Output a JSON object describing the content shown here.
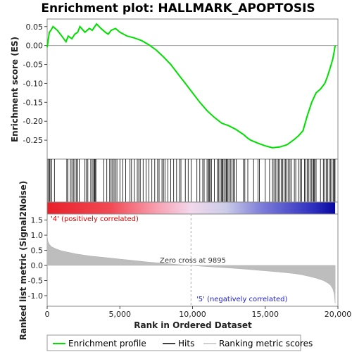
{
  "chart_data": {
    "type": "line",
    "title": "Enrichment plot: HALLMARK_APOPTOSIS",
    "es_panel": {
      "ylabel": "Enrichment score (ES)",
      "ylim": [
        -0.3,
        0.07
      ],
      "yticks": [
        "0.05",
        "0.00",
        "-0.05",
        "-0.10",
        "-0.15",
        "-0.20",
        "-0.25"
      ],
      "ytick_values": [
        0.05,
        0.0,
        -0.05,
        -0.1,
        -0.15,
        -0.2,
        -0.25
      ],
      "series_name": "Enrichment profile",
      "color": "#00e000",
      "points": [
        [
          0,
          -0.005
        ],
        [
          150,
          0.035
        ],
        [
          250,
          0.04
        ],
        [
          400,
          0.05
        ],
        [
          700,
          0.04
        ],
        [
          1000,
          0.025
        ],
        [
          1300,
          0.01
        ],
        [
          1450,
          0.025
        ],
        [
          1700,
          0.018
        ],
        [
          1900,
          0.03
        ],
        [
          2100,
          0.035
        ],
        [
          2250,
          0.05
        ],
        [
          2600,
          0.035
        ],
        [
          2900,
          0.045
        ],
        [
          3100,
          0.04
        ],
        [
          3400,
          0.057
        ],
        [
          3700,
          0.045
        ],
        [
          4000,
          0.035
        ],
        [
          4200,
          0.03
        ],
        [
          4400,
          0.04
        ],
        [
          4700,
          0.045
        ],
        [
          5000,
          0.035
        ],
        [
          5500,
          0.025
        ],
        [
          6000,
          0.02
        ],
        [
          6500,
          0.013
        ],
        [
          7000,
          0.002
        ],
        [
          7500,
          -0.012
        ],
        [
          8000,
          -0.03
        ],
        [
          8500,
          -0.05
        ],
        [
          9000,
          -0.075
        ],
        [
          9500,
          -0.1
        ],
        [
          10000,
          -0.125
        ],
        [
          10500,
          -0.15
        ],
        [
          11000,
          -0.172
        ],
        [
          11500,
          -0.19
        ],
        [
          12000,
          -0.205
        ],
        [
          12500,
          -0.212
        ],
        [
          13000,
          -0.222
        ],
        [
          13500,
          -0.235
        ],
        [
          13800,
          -0.245
        ],
        [
          14000,
          -0.25
        ],
        [
          14500,
          -0.258
        ],
        [
          15000,
          -0.265
        ],
        [
          15500,
          -0.27
        ],
        [
          16000,
          -0.268
        ],
        [
          16500,
          -0.262
        ],
        [
          17000,
          -0.248
        ],
        [
          17300,
          -0.238
        ],
        [
          17600,
          -0.225
        ],
        [
          17900,
          -0.185
        ],
        [
          18200,
          -0.15
        ],
        [
          18500,
          -0.125
        ],
        [
          18800,
          -0.115
        ],
        [
          19100,
          -0.1
        ],
        [
          19300,
          -0.08
        ],
        [
          19500,
          -0.055
        ],
        [
          19650,
          -0.035
        ],
        [
          19750,
          -0.015
        ],
        [
          19810,
          0.0
        ]
      ]
    },
    "hits_panel": {
      "series_name": "Hits",
      "hit_ranks": [
        60,
        150,
        200,
        320,
        500,
        1350,
        1420,
        1600,
        1700,
        1800,
        1900,
        2000,
        2100,
        2200,
        2600,
        2700,
        2800,
        3000,
        3100,
        3200,
        3250,
        3300,
        3350,
        3900,
        4100,
        4300,
        4400,
        4500,
        4600,
        4700,
        4800,
        5000,
        5200,
        5400,
        5700,
        5800,
        6000,
        6200,
        6300,
        6400,
        6600,
        6800,
        7000,
        7200,
        7400,
        7600,
        7700,
        7900,
        8000,
        8100,
        8300,
        8500,
        8700,
        8900,
        9100,
        9200,
        9500,
        9700,
        9900,
        10300,
        10500,
        10700,
        10800,
        11000,
        11100,
        11150,
        11200,
        11300,
        11500,
        11700,
        11800,
        11900,
        12000,
        12050,
        12100,
        12200,
        12300,
        12350,
        12400,
        12500,
        12600,
        12700,
        12800,
        12900,
        13000,
        13500,
        13600,
        13800,
        14200,
        14500,
        14600,
        15000,
        15300,
        15500,
        15600,
        15700,
        15800,
        15900,
        16000,
        16100,
        16200,
        16300,
        16400,
        16500,
        16600,
        16700,
        16800,
        17000,
        17100,
        17300,
        17400,
        17500,
        17700,
        17800,
        17900,
        18000,
        18100,
        18200,
        18300,
        18350,
        18400,
        18500,
        18800,
        19000,
        19100,
        19200,
        19300,
        19400,
        19500,
        19600,
        19700,
        19750,
        19800
      ]
    },
    "metric_panel": {
      "series_name": "Ranking metric scores",
      "ylabel": "Ranked list metric (Signal2Noise)",
      "ylim": [
        -1.35,
        1.7
      ],
      "yticks": [
        "1.5",
        "1.0",
        "0.5",
        "0.0",
        "-0.5",
        "-1.0"
      ],
      "ytick_values": [
        1.5,
        1.0,
        0.5,
        0.0,
        -0.5,
        -1.0
      ],
      "points": [
        [
          0,
          1.0
        ],
        [
          50,
          0.8
        ],
        [
          150,
          0.7
        ],
        [
          300,
          0.62
        ],
        [
          600,
          0.55
        ],
        [
          1000,
          0.48
        ],
        [
          1500,
          0.43
        ],
        [
          2000,
          0.38
        ],
        [
          3000,
          0.31
        ],
        [
          4000,
          0.26
        ],
        [
          5000,
          0.21
        ],
        [
          6000,
          0.16
        ],
        [
          7000,
          0.11
        ],
        [
          8000,
          0.07
        ],
        [
          9000,
          0.03
        ],
        [
          9895,
          0.0
        ],
        [
          11000,
          -0.04
        ],
        [
          12000,
          -0.07
        ],
        [
          13000,
          -0.1
        ],
        [
          14000,
          -0.14
        ],
        [
          15000,
          -0.18
        ],
        [
          16000,
          -0.22
        ],
        [
          17000,
          -0.27
        ],
        [
          17500,
          -0.31
        ],
        [
          18000,
          -0.36
        ],
        [
          18500,
          -0.42
        ],
        [
          19000,
          -0.5
        ],
        [
          19300,
          -0.58
        ],
        [
          19500,
          -0.66
        ],
        [
          19650,
          -0.78
        ],
        [
          19750,
          -0.95
        ],
        [
          19810,
          -1.25
        ]
      ],
      "zero_cross_label": "Zero cross at 9895",
      "zero_cross": 9895,
      "pos_label": "'4' (positively correlated)",
      "neg_label": "'5' (negatively correlated)"
    },
    "x": {
      "label": "Rank in Ordered Dataset",
      "xlim": [
        0,
        20000
      ],
      "xticks": [
        "0",
        "5,000",
        "10,000",
        "15,000",
        "20,000"
      ],
      "xtick_values": [
        0,
        5000,
        10000,
        15000,
        20000
      ],
      "n": 19810
    },
    "legend": {
      "position": "bottom",
      "items": [
        {
          "label": "Enrichment profile",
          "color": "#00e000"
        },
        {
          "label": "Hits",
          "color": "#000000"
        },
        {
          "label": "Ranking metric scores",
          "color": "#c0c0c0"
        }
      ]
    }
  }
}
